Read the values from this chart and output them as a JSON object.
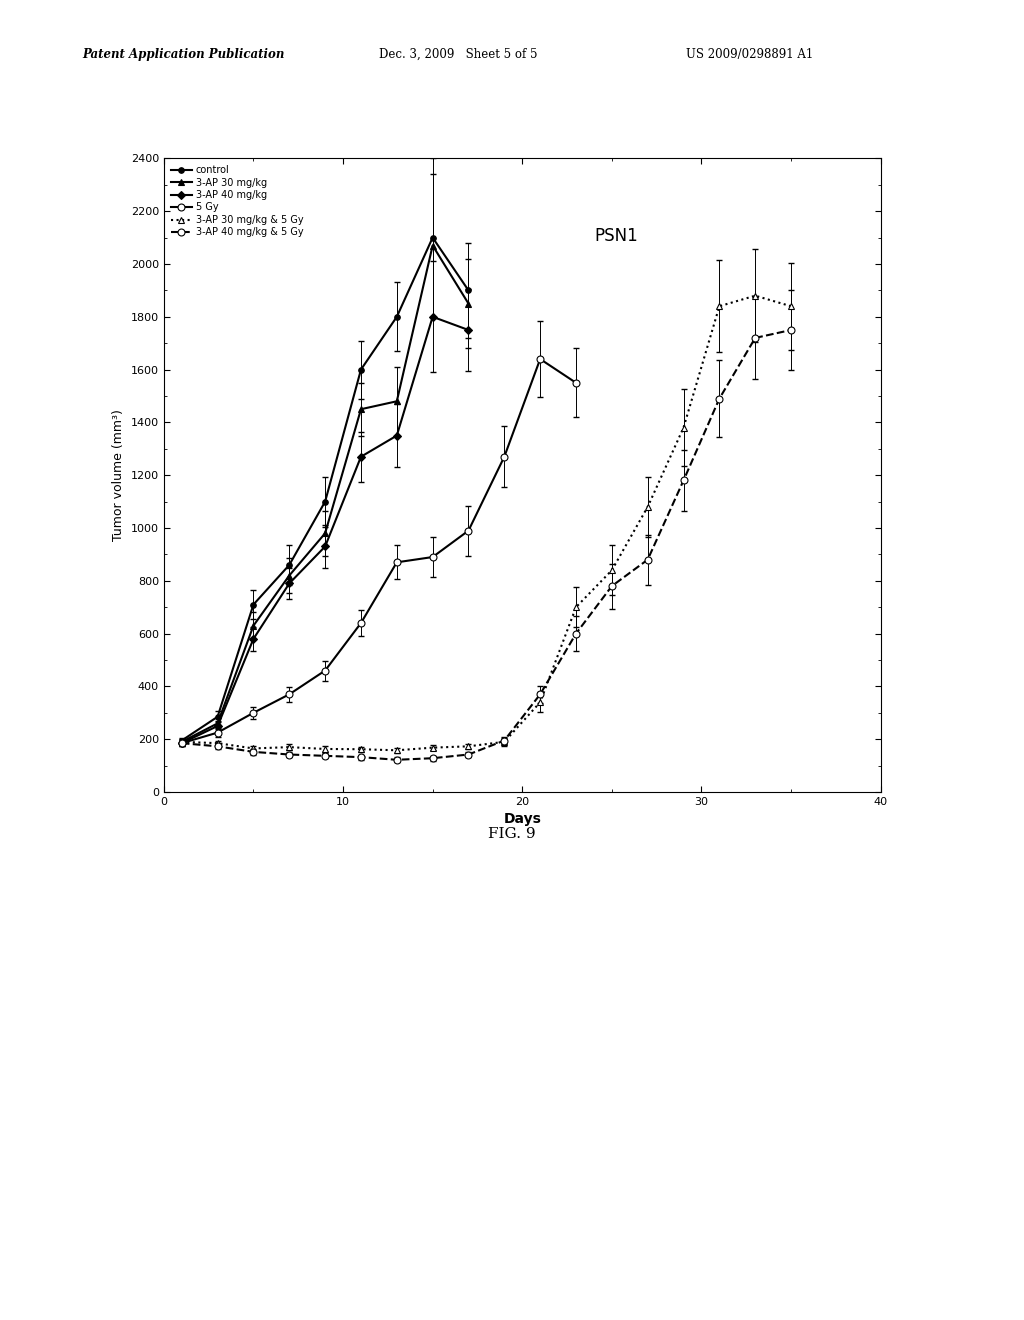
{
  "title": "",
  "xlabel": "Days",
  "ylabel": "Tumor volume (mm³)",
  "annotation": "PSN1",
  "xlim": [
    0,
    40
  ],
  "ylim": [
    0,
    2400
  ],
  "yticks": [
    0,
    200,
    400,
    600,
    800,
    1000,
    1200,
    1400,
    1600,
    1800,
    2000,
    2200,
    2400
  ],
  "xticks": [
    0,
    10,
    20,
    30,
    40
  ],
  "fig_caption": "FIG. 9",
  "header_left": "Patent Application Publication",
  "header_mid": "Dec. 3, 2009    Sheet 5 of 5",
  "header_right": "US 2009/0298891 A1",
  "series": [
    {
      "label": "control",
      "color": "#000000",
      "linestyle": "-",
      "marker": "o",
      "markerfacecolor": "#000000",
      "markersize": 4,
      "linewidth": 1.5,
      "x": [
        1,
        3,
        5,
        7,
        9,
        11,
        13,
        15,
        17
      ],
      "y": [
        195,
        285,
        710,
        860,
        1100,
        1600,
        1800,
        2100,
        1900
      ],
      "yerr": [
        10,
        20,
        55,
        75,
        95,
        110,
        130,
        300,
        180
      ]
    },
    {
      "label": "3-AP 30 mg/kg",
      "color": "#000000",
      "linestyle": "-",
      "marker": "^",
      "markerfacecolor": "#000000",
      "markersize": 5,
      "linewidth": 1.5,
      "x": [
        1,
        3,
        5,
        7,
        9,
        11,
        13,
        15,
        17
      ],
      "y": [
        190,
        260,
        630,
        820,
        980,
        1450,
        1480,
        2070,
        1850
      ],
      "yerr": [
        10,
        20,
        50,
        65,
        85,
        100,
        130,
        270,
        170
      ]
    },
    {
      "label": "3-AP 40 mg/kg",
      "color": "#000000",
      "linestyle": "-",
      "marker": "D",
      "markerfacecolor": "#000000",
      "markersize": 4,
      "linewidth": 1.5,
      "x": [
        1,
        3,
        5,
        7,
        9,
        11,
        13,
        15,
        17
      ],
      "y": [
        185,
        250,
        580,
        790,
        930,
        1270,
        1350,
        1800,
        1750
      ],
      "yerr": [
        10,
        18,
        45,
        60,
        80,
        95,
        120,
        210,
        155
      ]
    },
    {
      "label": "5 Gy",
      "color": "#000000",
      "linestyle": "-",
      "marker": "o",
      "markerfacecolor": "#ffffff",
      "markersize": 5,
      "linewidth": 1.5,
      "x": [
        1,
        3,
        5,
        7,
        9,
        11,
        13,
        15,
        17,
        19,
        21,
        23
      ],
      "y": [
        185,
        225,
        300,
        370,
        460,
        640,
        870,
        890,
        990,
        1270,
        1640,
        1550
      ],
      "yerr": [
        10,
        18,
        22,
        28,
        38,
        50,
        65,
        75,
        95,
        115,
        145,
        130
      ]
    },
    {
      "label": "3-AP 30 mg/kg & 5 Gy",
      "color": "#000000",
      "linestyle": ":",
      "marker": "^",
      "markerfacecolor": "#ffffff",
      "markersize": 5,
      "linewidth": 1.5,
      "x": [
        1,
        3,
        5,
        7,
        9,
        11,
        13,
        15,
        17,
        19,
        21,
        23,
        25,
        27,
        29,
        31,
        33,
        35
      ],
      "y": [
        190,
        185,
        165,
        170,
        163,
        162,
        158,
        168,
        173,
        190,
        340,
        700,
        840,
        1080,
        1380,
        1840,
        1880,
        1840
      ],
      "yerr": [
        10,
        10,
        10,
        10,
        10,
        10,
        10,
        10,
        10,
        15,
        38,
        75,
        95,
        115,
        145,
        175,
        175,
        165
      ]
    },
    {
      "label": "3-AP 40 mg/kg & 5 Gy",
      "color": "#000000",
      "linestyle": "--",
      "marker": "o",
      "markerfacecolor": "#ffffff",
      "markersize": 5,
      "linewidth": 1.5,
      "x": [
        1,
        3,
        5,
        7,
        9,
        11,
        13,
        15,
        17,
        19,
        21,
        23,
        25,
        27,
        29,
        31,
        33,
        35
      ],
      "y": [
        185,
        173,
        152,
        142,
        137,
        132,
        122,
        128,
        142,
        195,
        370,
        600,
        780,
        880,
        1180,
        1490,
        1720,
        1750
      ],
      "yerr": [
        10,
        10,
        10,
        10,
        10,
        10,
        10,
        10,
        10,
        15,
        32,
        65,
        85,
        95,
        115,
        145,
        155,
        150
      ]
    }
  ]
}
